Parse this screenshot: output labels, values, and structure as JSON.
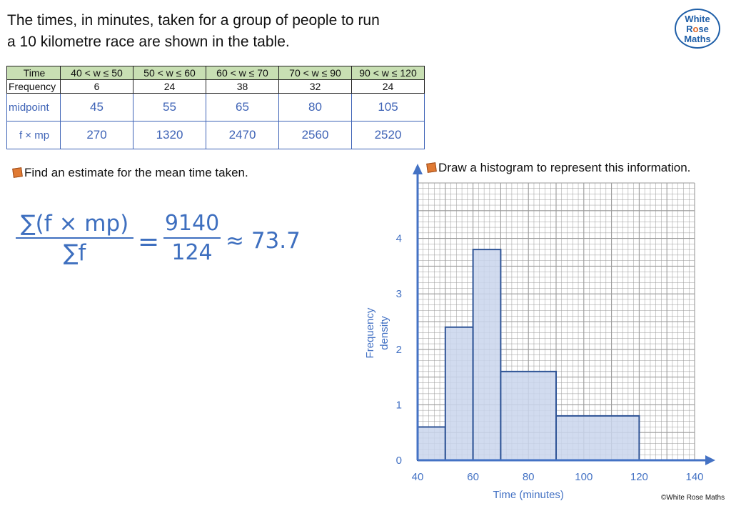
{
  "question": {
    "line1": "The times, in minutes, taken for a group of people to run",
    "line2": "a 10 kilometre race are shown in the table."
  },
  "logo": {
    "line1": "White",
    "line2a": "R",
    "line2b": "o",
    "line2c": "se",
    "line3": "Maths"
  },
  "table": {
    "time_label": "Time",
    "freq_label": "Frequency",
    "midpoint_label": "midpoint",
    "fmp_label": "f × mp",
    "intervals": [
      "40 < w ≤ 50",
      "50 < w ≤ 60",
      "60 < w ≤ 70",
      "70 < w ≤ 90",
      "90 < w ≤ 120"
    ],
    "frequencies": [
      "6",
      "24",
      "38",
      "32",
      "24"
    ],
    "midpoints": [
      "45",
      "55",
      "65",
      "80",
      "105"
    ],
    "fmp": [
      "270",
      "1320",
      "2470",
      "2560",
      "2520"
    ]
  },
  "mean_prompt": "Find an estimate for the mean time taken.",
  "hist_prompt": "Draw a histogram to represent this information.",
  "working": {
    "numerator": "∑(f × mp)",
    "denominator": "∑f",
    "equals": "=",
    "num2": "9140",
    "den2": "124",
    "approx": "≈ 73.7"
  },
  "chart_data": {
    "type": "bar",
    "bins": [
      [
        40,
        50
      ],
      [
        50,
        60
      ],
      [
        60,
        70
      ],
      [
        70,
        90
      ],
      [
        90,
        120
      ]
    ],
    "values": [
      0.6,
      2.4,
      3.8,
      1.6,
      0.8
    ],
    "xlabel": "Time (minutes)",
    "ylabel": "Frequency density",
    "xlim": [
      40,
      140
    ],
    "ylim": [
      0,
      5
    ],
    "xticks": [
      "40",
      "60",
      "80",
      "100",
      "120",
      "140"
    ],
    "yticks": [
      "0",
      "1",
      "2",
      "3",
      "4"
    ],
    "grid": true,
    "colors": {
      "axis": "#4472c4",
      "bar_fill": "#c9d5ec",
      "bar_stroke": "#2f5496",
      "grid": "#9a9a9a"
    }
  },
  "copyright": "©White Rose Maths"
}
